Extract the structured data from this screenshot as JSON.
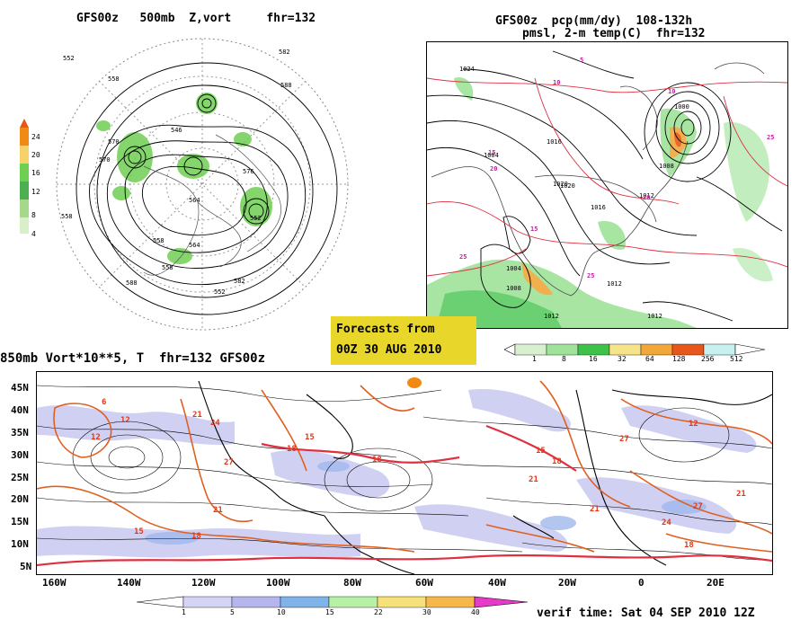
{
  "titles": {
    "upper_left": "GFS00z   500mb  Z,vort     fhr=132",
    "upper_right_line1": "GFS00z  pcp(mm/dy)  108-132h",
    "upper_right_line2": "pmsl, 2-m temp(C)  fhr=132",
    "bottom": "850mb Vort*10**5, T  fhr=132 GFS00z"
  },
  "forecast_box": {
    "line1": "Forecasts from",
    "line2": "00Z 30 AUG 2010",
    "color": "#e8d72a"
  },
  "verif_time": "verif time: Sat 04 SEP 2010 12Z",
  "vorticity_colorbar": {
    "labels": [
      "24",
      "20",
      "16",
      "12",
      "8",
      "4"
    ],
    "colors": [
      "#f08a14",
      "#f7d16a",
      "#6fcf53",
      "#4caf50",
      "#a5d88a",
      "#d9efc9"
    ]
  },
  "precip_colorbar": {
    "labels": [
      "1",
      "8",
      "16",
      "32",
      "64",
      "128",
      "256",
      "512"
    ],
    "colors": [
      "#d8f0d0",
      "#9fe39a",
      "#3ec24a",
      "#f7e38a",
      "#f1a73a",
      "#e8571a",
      "#c7f0f0"
    ]
  },
  "vort850_colorbar": {
    "labels": [
      "1",
      "5",
      "10",
      "15",
      "22",
      "30",
      "40"
    ],
    "colors": [
      "#d4d4f4",
      "#b6b6ee",
      "#80b4e8",
      "#b8f0a8",
      "#f6e07a",
      "#f6b84a",
      "#f08a14"
    ]
  },
  "lon_labels": [
    "160W",
    "140W",
    "120W",
    "100W",
    "80W",
    "60W",
    "40W",
    "20W",
    "0",
    "20E"
  ],
  "lat_labels": [
    "45N",
    "40N",
    "35N",
    "30N",
    "25N",
    "20N",
    "15N",
    "10N",
    "5N"
  ],
  "height_labels": [
    "552",
    "588",
    "558",
    "582",
    "576",
    "570",
    "564",
    "546",
    "558",
    "552",
    "558",
    "564",
    "558",
    "570",
    "552",
    "582",
    "588"
  ],
  "pmsl_labels": [
    "1004",
    "1008",
    "1012",
    "1016",
    "1020",
    "1024",
    "1000",
    "1008",
    "1012",
    "1016",
    "1020",
    "1004",
    "1012",
    "1012"
  ],
  "temp_labels_magenta": [
    "5",
    "10",
    "15",
    "20",
    "25",
    "10",
    "15",
    "25",
    "25",
    "20"
  ],
  "temp850_labels": [
    "6",
    "12",
    "18",
    "21",
    "24",
    "27",
    "15",
    "18",
    "21",
    "12",
    "18",
    "21",
    "27",
    "15",
    "18",
    "21",
    "24",
    "27",
    "12",
    "18",
    "21",
    "15"
  ]
}
